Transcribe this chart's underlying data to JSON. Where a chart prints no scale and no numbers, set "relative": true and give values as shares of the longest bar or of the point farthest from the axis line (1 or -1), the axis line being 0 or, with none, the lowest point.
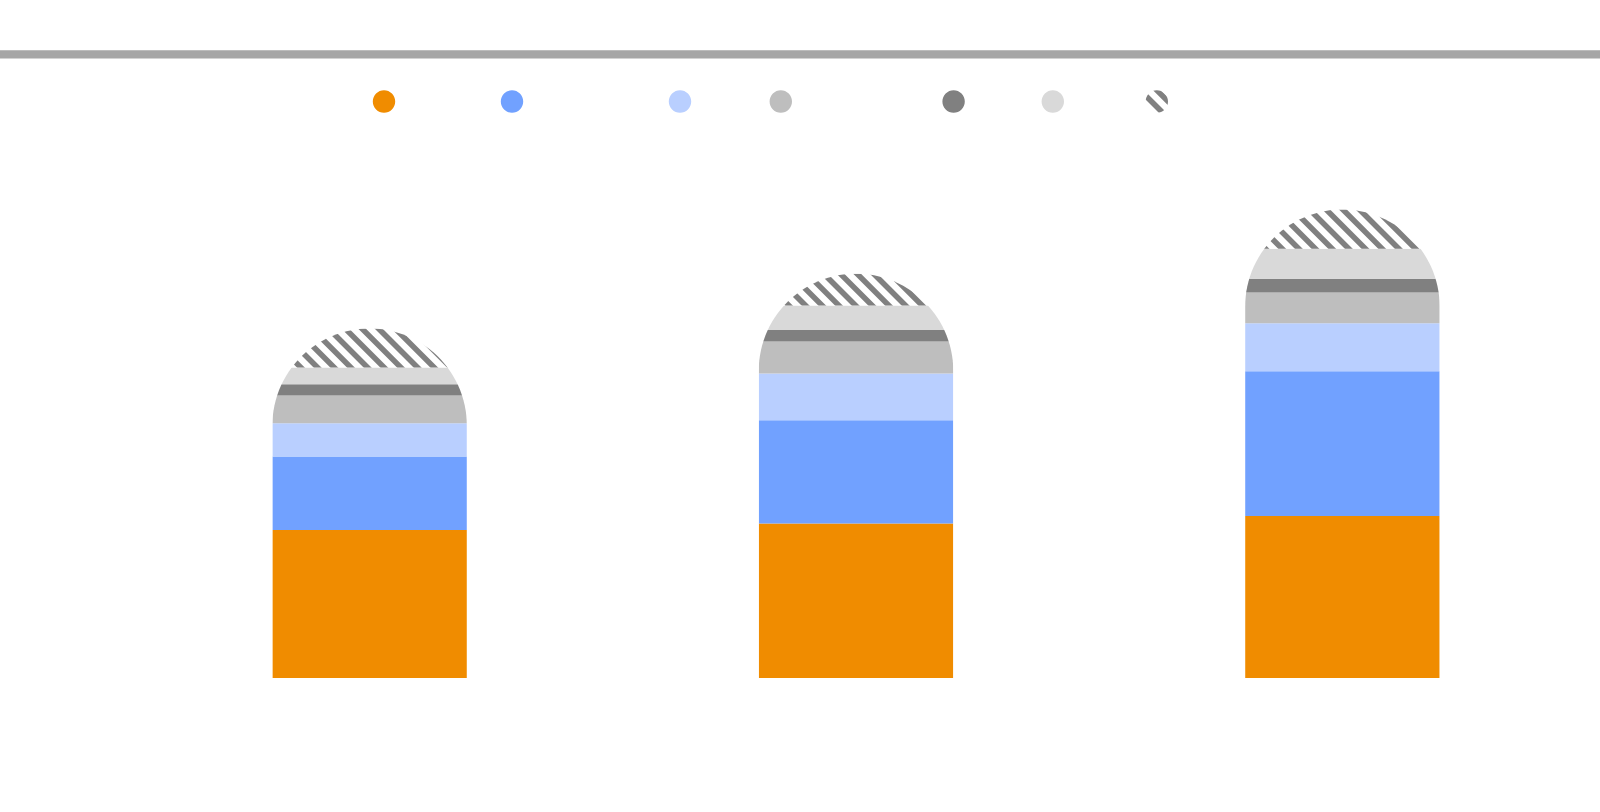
{
  "chart_data": {
    "type": "bar",
    "stacked": true,
    "relative": true,
    "categories": [
      null,
      null,
      null
    ],
    "series": [
      {
        "color": "#f08c00",
        "values": [
          0.316,
          0.33,
          0.346
        ]
      },
      {
        "color": "#71a1ff",
        "values": [
          0.157,
          0.22,
          0.309
        ]
      },
      {
        "color": "#b9cfff",
        "values": [
          0.071,
          0.1,
          0.102
        ]
      },
      {
        "color": "#bebebe",
        "values": [
          0.059,
          0.068,
          0.066
        ]
      },
      {
        "color": "#808080",
        "values": [
          0.024,
          0.025,
          0.029
        ]
      },
      {
        "color": "#d9d9d9",
        "values": [
          0.036,
          0.052,
          0.064
        ]
      },
      {
        "color": "#808080",
        "values": [
          0.083,
          0.068,
          0.084
        ]
      }
    ]
  }
}
